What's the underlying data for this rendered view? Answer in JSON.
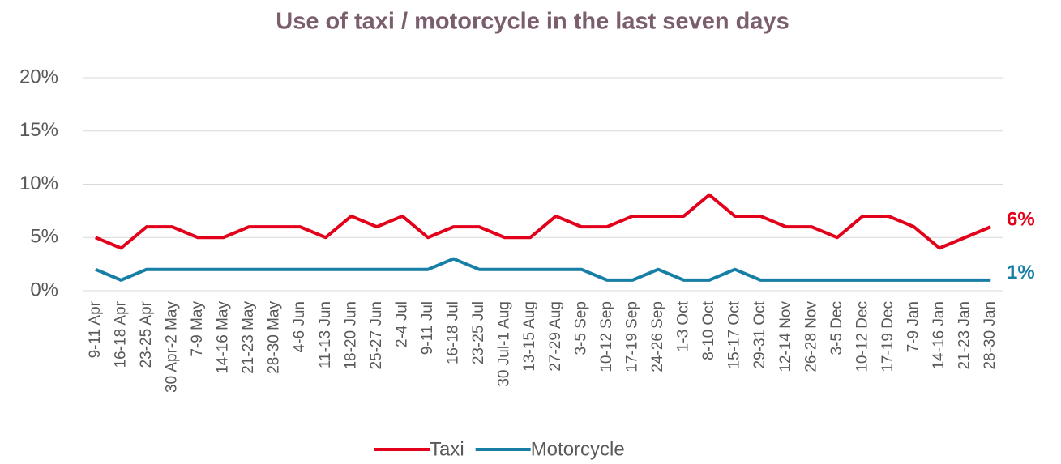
{
  "chart_data": {
    "type": "line",
    "title": "Use of taxi / motorcycle in the last seven days",
    "categories": [
      "9-11 Apr",
      "16-18 Apr",
      "23-25 Apr",
      "30 Apr-2 May",
      "7-9 May",
      "14-16 May",
      "21-23 May",
      "28-30 May",
      "4-6 Jun",
      "11-13 Jun",
      "18-20 Jun",
      "25-27 Jun",
      "2-4 Jul",
      "9-11 Jul",
      "16-18 Jul",
      "23-25 Jul",
      "30 Jul-1 Aug",
      "13-15 Aug",
      "27-29 Aug",
      "3-5 Sep",
      "10-12 Sep",
      "17-19 Sep",
      "24-26 Sep",
      "1-3 Oct",
      "8-10 Oct",
      "15-17 Oct",
      "29-31 Oct",
      "12-14 Nov",
      "26-28 Nov",
      "3-5 Dec",
      "10-12 Dec",
      "17-19 Dec",
      "7-9 Jan",
      "14-16 Jan",
      "21-23 Jan",
      "28-30 Jan"
    ],
    "series": [
      {
        "name": "Taxi",
        "color": "#e2001a",
        "values": [
          5,
          4,
          6,
          6,
          5,
          5,
          6,
          6,
          6,
          5,
          7,
          6,
          7,
          5,
          6,
          6,
          5,
          5,
          7,
          6,
          6,
          7,
          7,
          7,
          9,
          7,
          7,
          6,
          6,
          5,
          7,
          7,
          6,
          4,
          5,
          6
        ],
        "end_label": "6%"
      },
      {
        "name": "Motorcycle",
        "color": "#177fa6",
        "values": [
          2,
          1,
          2,
          2,
          2,
          2,
          2,
          2,
          2,
          2,
          2,
          2,
          2,
          2,
          3,
          2,
          2,
          2,
          2,
          2,
          1,
          1,
          2,
          1,
          1,
          2,
          1,
          1,
          1,
          1,
          1,
          1,
          1,
          1,
          1,
          1
        ],
        "end_label": "1%"
      }
    ],
    "ylim": [
      0,
      20
    ],
    "yticks": [
      {
        "value": 0,
        "label": "0%"
      },
      {
        "value": 5,
        "label": "5%"
      },
      {
        "value": 10,
        "label": "10%"
      },
      {
        "value": 15,
        "label": "15%"
      },
      {
        "value": 20,
        "label": "20%"
      }
    ],
    "grid": true,
    "legend": "bottom"
  }
}
